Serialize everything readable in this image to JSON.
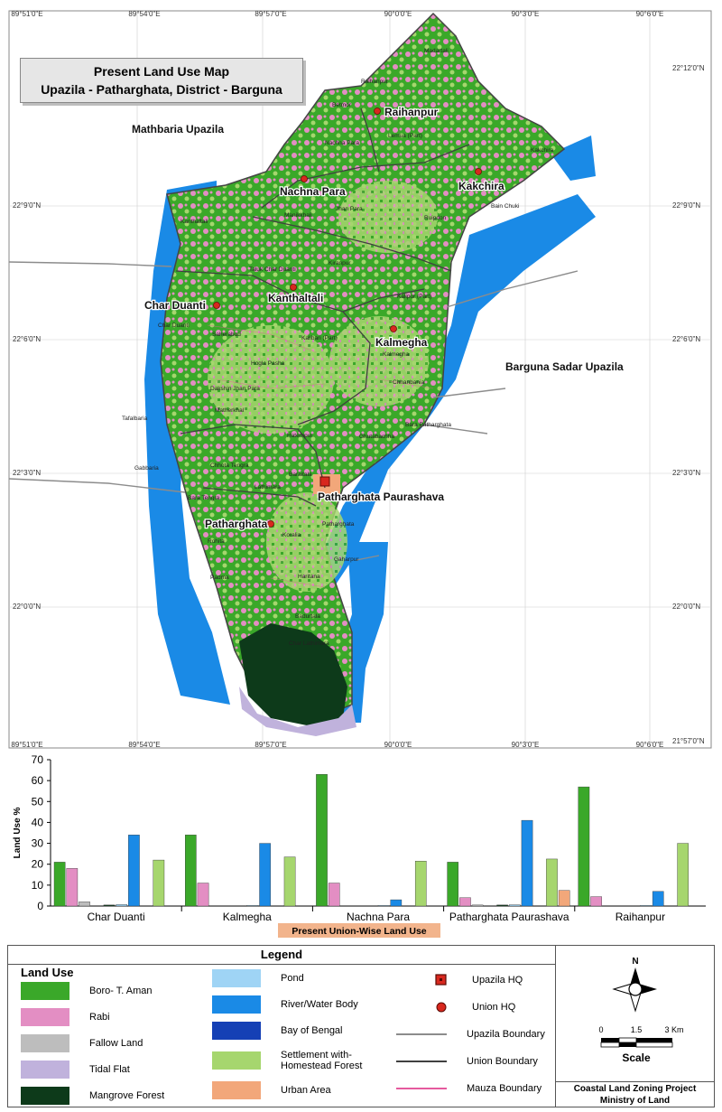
{
  "map": {
    "title_line1": "Present Land Use Map",
    "title_line2": "Upazila - Patharghata, District - Barguna",
    "longitudes": [
      "89°51'0\"E",
      "89°54'0\"E",
      "89°57'0\"E",
      "90°0'0\"E",
      "90°3'0\"E",
      "90°6'0\"E"
    ],
    "latitudes": [
      "22°12'0\"N",
      "22°9'0\"N",
      "22°6'0\"N",
      "22°3'0\"N",
      "22°0'0\"N",
      "21°57'0\"N"
    ],
    "neighbor_labels": [
      "Mathbaria Upazila",
      "Barguna Sadar Upazila"
    ],
    "union_labels": [
      "Raihanpur",
      "Nachna Para",
      "Kakchira",
      "Kanthaltali",
      "Char Duanti",
      "Kalmegha",
      "Patharghata",
      "Patharghata Paurashava"
    ],
    "mauza_labels": [
      "Madartali",
      "Raihanpur",
      "Betmor",
      "Lemua (Part)",
      "Nachna Para",
      "Kakchira",
      "Manikkhali",
      "Jhan Para",
      "Bain Chuki",
      "Ruipdon",
      "Kanthaltali",
      "Taluk Char Duanti",
      "Kiranpur",
      "Kalipur (Part)",
      "Saherabad",
      "Char Duanti",
      "Kalibari (Part)",
      "Kalmegha",
      "Hogla Pasha",
      "Dakshin Jhan Para",
      "Chhanbania",
      "Tafalbaria",
      "Matherkhal",
      "Hatempur",
      "Ghutabachha",
      "Bara Patharghata",
      "Chhota Tengra",
      "Gabbaria",
      "Baraitala",
      "Lathimara",
      "Bara Tengra",
      "Patharghata",
      "Rohita",
      "Koralia",
      "Gaharpur",
      "Padma",
      "Haritana",
      "Badurtala",
      "Char Lathimara"
    ]
  },
  "chart_data": {
    "type": "bar",
    "title": "",
    "xlabel": "Present Union-Wise Land Use",
    "ylabel": "Land Use %",
    "ylim": [
      0,
      70
    ],
    "yticks": [
      "0",
      "10",
      "20",
      "30",
      "40",
      "50",
      "60",
      "70"
    ],
    "categories": [
      "Char Duanti",
      "Kalmegha",
      "Nachna Para",
      "Patharghata Paurashava",
      "Raihanpur"
    ],
    "category_labels_shown": [
      "Char Duanti",
      "Kalmegha",
      "Nachna Para",
      "Patharghata Paurashava",
      "Raihanpur"
    ],
    "series": [
      {
        "name": "Boro- T. Aman",
        "color": "#3aa829",
        "values": [
          21,
          34,
          63,
          21,
          57
        ]
      },
      {
        "name": "Rabi",
        "color": "#e38ec3",
        "values": [
          18,
          11,
          11,
          4,
          4.5
        ]
      },
      {
        "name": "Fallow Land",
        "color": "#bdbdbd",
        "values": [
          2,
          0,
          0,
          0.5,
          0
        ]
      },
      {
        "name": "Tidal Flat",
        "color": "#c0b2dc",
        "values": [
          0,
          0,
          0,
          0,
          0
        ]
      },
      {
        "name": "Mangrove Forest",
        "color": "#0d3a1a",
        "values": [
          0.5,
          0,
          0,
          0.5,
          0
        ]
      },
      {
        "name": "Pond",
        "color": "#9fd4f5",
        "values": [
          0.7,
          0.3,
          0.3,
          0.6,
          0.3
        ]
      },
      {
        "name": "River/Water Body",
        "color": "#1a8ae6",
        "values": [
          34,
          30,
          3,
          41,
          7
        ]
      },
      {
        "name": "Bay of Bengal",
        "color": "#1540b5",
        "values": [
          0,
          0,
          0,
          0,
          0
        ]
      },
      {
        "name": "Settlement with-Homestead Forest",
        "color": "#a6d66e",
        "values": [
          22,
          23.5,
          21.5,
          22.5,
          30
        ]
      },
      {
        "name": "Urban Area",
        "color": "#f2a77a",
        "values": [
          0,
          0,
          0,
          7.5,
          0
        ]
      }
    ],
    "grid": false
  },
  "legend": {
    "title": "Legend",
    "land_use_heading": "Land Use",
    "items": [
      {
        "label": "Boro- T. Aman",
        "color": "#3aa829"
      },
      {
        "label": "Rabi",
        "color": "#e38ec3"
      },
      {
        "label": "Fallow Land",
        "color": "#bdbdbd"
      },
      {
        "label": "Tidal Flat",
        "color": "#c0b2dc"
      },
      {
        "label": "Mangrove Forest",
        "color": "#0d3a1a"
      },
      {
        "label": "Pond",
        "color": "#9fd4f5"
      },
      {
        "label": "River/Water Body",
        "color": "#1a8ae6"
      },
      {
        "label": "Bay of Bengal",
        "color": "#1540b5"
      },
      {
        "label": "Settlement with-",
        "label2": "Homestead Forest",
        "color": "#a6d66e"
      },
      {
        "label": "Urban Area",
        "color": "#f2a77a"
      }
    ],
    "symbols": [
      {
        "label": "Upazila HQ"
      },
      {
        "label": "Union HQ"
      },
      {
        "label": "Upazila Boundary",
        "color": "#8c8c8c"
      },
      {
        "label": "Union Boundary",
        "color": "#404040"
      },
      {
        "label": "Mauza Boundary",
        "color": "#e55a9e"
      }
    ],
    "north": "N",
    "scale_ticks": [
      "0",
      "1.5",
      "3 Km"
    ],
    "scale_label": "Scale",
    "project_line1": "Coastal Land Zoning Project",
    "project_line2": "Ministry of Land"
  }
}
